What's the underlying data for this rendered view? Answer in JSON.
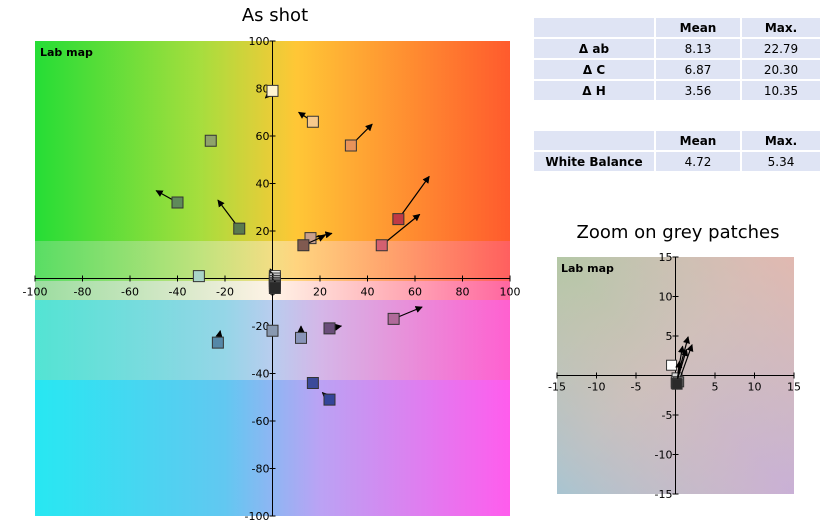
{
  "titles": {
    "main": "As shot",
    "zoom": "Zoom on grey patches"
  },
  "colors": {
    "axis": "#000000",
    "table_bg": "#dfe4f4"
  },
  "delta_table": {
    "headers": [
      "",
      "Mean",
      "Max."
    ],
    "rows": [
      {
        "label": "Δ ab",
        "mean": "8.13",
        "max": "22.79"
      },
      {
        "label": "Δ C",
        "mean": "6.87",
        "max": "20.30"
      },
      {
        "label": "Δ H",
        "mean": "3.56",
        "max": "10.35"
      }
    ]
  },
  "wb_table": {
    "headers": [
      "",
      "Mean",
      "Max."
    ],
    "rows": [
      {
        "label": "White Balance",
        "mean": "4.72",
        "max": "5.34"
      }
    ]
  },
  "chart_data": [
    {
      "type": "scatter",
      "title": "As shot",
      "panel_label": "Lab map",
      "xlim": [
        -100,
        100
      ],
      "ylim": [
        -100,
        100
      ],
      "xticks": [
        -100,
        -80,
        -60,
        -40,
        -20,
        0,
        20,
        40,
        60,
        80,
        100
      ],
      "yticks": [
        -100,
        -80,
        -60,
        -40,
        -20,
        20,
        40,
        60,
        80,
        100
      ],
      "series": [
        {
          "points": [
            {
              "x": 0,
              "y": 79,
              "tx": -3,
              "ty": 76,
              "color": "#fff4d0"
            },
            {
              "x": 17,
              "y": 66,
              "tx": 11,
              "ty": 70,
              "color": "#f7c98c"
            },
            {
              "x": 33,
              "y": 56,
              "tx": 42,
              "ty": 65,
              "color": "#e8935a"
            },
            {
              "x": -26,
              "y": 58,
              "tx": -26,
              "ty": 58,
              "color": "#8ea26a"
            },
            {
              "x": -40,
              "y": 32,
              "tx": -49,
              "ty": 37,
              "color": "#5f8a5a"
            },
            {
              "x": -14,
              "y": 21,
              "tx": -23,
              "ty": 33,
              "color": "#5a7a4e"
            },
            {
              "x": 53,
              "y": 25,
              "tx": 66,
              "ty": 43,
              "color": "#c03a45"
            },
            {
              "x": 46,
              "y": 14,
              "tx": 62,
              "ty": 27,
              "color": "#d46070"
            },
            {
              "x": 16,
              "y": 17,
              "tx": 25,
              "ty": 19,
              "color": "#c9a08d"
            },
            {
              "x": 13,
              "y": 14,
              "tx": 22,
              "ty": 18,
              "color": "#805a50"
            },
            {
              "x": -31,
              "y": 1,
              "tx": -31,
              "ty": 1,
              "color": "#a8d4c8"
            },
            {
              "x": 1,
              "y": 1,
              "tx": -1,
              "ty": 4,
              "color": "#ffffff"
            },
            {
              "x": 1,
              "y": 0,
              "tx": -1,
              "ty": 3,
              "color": "#d8d8d8"
            },
            {
              "x": 1,
              "y": -1,
              "tx": 0,
              "ty": 2,
              "color": "#a8a8a8"
            },
            {
              "x": 1,
              "y": -2,
              "tx": 0,
              "ty": 1,
              "color": "#7a7a7a"
            },
            {
              "x": 1,
              "y": -3,
              "tx": 0,
              "ty": 0,
              "color": "#4a4a4a"
            },
            {
              "x": 1,
              "y": -4,
              "tx": 1,
              "ty": -1,
              "color": "#2a2a2a"
            },
            {
              "x": -23,
              "y": -27,
              "tx": -22,
              "ty": -22,
              "color": "#5588a8"
            },
            {
              "x": 0,
              "y": -22,
              "tx": 0,
              "ty": -22,
              "color": "#8898b0"
            },
            {
              "x": 12,
              "y": -25,
              "tx": 12,
              "ty": -20,
              "color": "#8894b8"
            },
            {
              "x": 24,
              "y": -21,
              "tx": 29,
              "ty": -20,
              "color": "#6a4e7a"
            },
            {
              "x": 51,
              "y": -17,
              "tx": 63,
              "ty": -12,
              "color": "#b06a9a"
            },
            {
              "x": 17,
              "y": -44,
              "tx": 17,
              "ty": -44,
              "color": "#3b4a9a"
            },
            {
              "x": 24,
              "y": -51,
              "tx": 21,
              "ty": -48,
              "color": "#34459a"
            }
          ]
        }
      ]
    },
    {
      "type": "scatter",
      "title": "Zoom on grey patches",
      "panel_label": "Lab map",
      "xlim": [
        -15,
        15
      ],
      "ylim": [
        -15,
        15
      ],
      "xticks": [
        -15,
        -10,
        -5,
        5,
        10,
        15
      ],
      "yticks": [
        -15,
        -10,
        -5,
        5,
        10,
        15
      ],
      "series": [
        {
          "points": [
            {
              "x": -0.5,
              "y": 1.3,
              "tx": -0.5,
              "ty": 1.3,
              "color": "#ffffff"
            },
            {
              "x": 0.2,
              "y": -0.3,
              "tx": 0.9,
              "ty": 3.7,
              "color": "#d8d8d8"
            },
            {
              "x": 0.1,
              "y": -0.8,
              "tx": 1.6,
              "ty": 4.9,
              "color": "#a8a8a8"
            },
            {
              "x": 0.4,
              "y": -0.8,
              "tx": 2.1,
              "ty": 3.9,
              "color": "#7a7a7a"
            },
            {
              "x": 0.1,
              "y": -1.0,
              "tx": 1.4,
              "ty": 3.3,
              "color": "#4a4a4a"
            },
            {
              "x": 0.2,
              "y": -1.1,
              "tx": 0.5,
              "ty": 1.8,
              "color": "#2a2a2a"
            }
          ]
        }
      ]
    }
  ]
}
